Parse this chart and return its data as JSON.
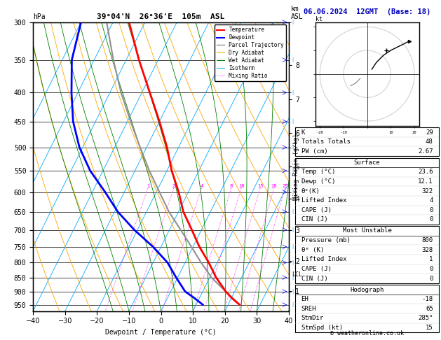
{
  "title_left": "39°04'N  26°36'E  105m  ASL",
  "title_right": "06.06.2024  12GMT  (Base: 18)",
  "xlabel": "Dewpoint / Temperature (°C)",
  "ylabel_left": "hPa",
  "copyright": "© weatheronline.co.uk",
  "pressure_ticks": [
    300,
    350,
    400,
    450,
    500,
    550,
    600,
    650,
    700,
    750,
    800,
    850,
    900,
    950
  ],
  "xlim": [
    -40,
    40
  ],
  "P_min": 300,
  "P_max": 975,
  "skew": 45,
  "temp_color": "#ff0000",
  "dewp_color": "#0000ff",
  "parcel_color": "#909090",
  "dry_adiabat_color": "#ffa500",
  "wet_adiabat_color": "#008000",
  "isotherm_color": "#00aaff",
  "mixing_ratio_color": "#ff00ff",
  "background_color": "#ffffff",
  "km_ticks": [
    1,
    2,
    3,
    4,
    5,
    6,
    7,
    8
  ],
  "km_pressures": [
    899,
    795,
    701,
    616,
    540,
    472,
    411,
    357
  ],
  "lcl_pressure": 840,
  "mixing_ratio_values": [
    1,
    2,
    4,
    8,
    10,
    15,
    20,
    25
  ],
  "legend_items": [
    {
      "label": "Temperature",
      "color": "#ff0000",
      "ls": "-",
      "lw": 1.5
    },
    {
      "label": "Dewpoint",
      "color": "#0000ff",
      "ls": "-",
      "lw": 1.5
    },
    {
      "label": "Parcel Trajectory",
      "color": "#909090",
      "ls": "-",
      "lw": 1.0
    },
    {
      "label": "Dry Adiabat",
      "color": "#ffa500",
      "ls": "-",
      "lw": 0.7
    },
    {
      "label": "Wet Adiabat",
      "color": "#008000",
      "ls": "-",
      "lw": 0.7
    },
    {
      "label": "Isotherm",
      "color": "#00aaff",
      "ls": "-",
      "lw": 0.7
    },
    {
      "label": "Mixing Ratio",
      "color": "#ff00ff",
      "ls": ":",
      "lw": 0.7
    }
  ],
  "sounding_pressure": [
    950,
    925,
    900,
    850,
    800,
    750,
    700,
    650,
    600,
    550,
    500,
    450,
    400,
    350,
    300
  ],
  "temperature": [
    23.6,
    20.2,
    17.2,
    12.0,
    7.4,
    2.0,
    -3.0,
    -8.5,
    -13.0,
    -18.5,
    -23.6,
    -30.0,
    -37.5,
    -46.0,
    -55.0
  ],
  "dewpoint": [
    12.1,
    8.5,
    4.5,
    -0.5,
    -5.5,
    -12.5,
    -21.0,
    -29.0,
    -36.0,
    -44.0,
    -51.0,
    -57.0,
    -62.0,
    -67.0,
    -70.0
  ],
  "parcel_pressure": [
    950,
    900,
    850,
    840,
    800,
    750,
    700,
    650,
    600,
    550,
    500,
    450,
    400,
    350,
    300
  ],
  "parcel_temp": [
    23.6,
    17.2,
    10.5,
    9.5,
    5.0,
    -0.5,
    -6.5,
    -13.0,
    -19.0,
    -25.5,
    -32.0,
    -39.0,
    -46.5,
    -54.0,
    -62.0
  ],
  "wind_barb_pressures": [
    950,
    900,
    850,
    800,
    750,
    700,
    650,
    600,
    550,
    500,
    450,
    400,
    350,
    300
  ],
  "wind_dirs": [
    200,
    210,
    220,
    230,
    240,
    250,
    260,
    270,
    270,
    270,
    275,
    280,
    285,
    285
  ],
  "wind_speeds": [
    5,
    7,
    10,
    12,
    14,
    16,
    18,
    18,
    20,
    22,
    22,
    24,
    25,
    28
  ],
  "hodo_u": [
    2,
    4,
    7,
    10,
    14,
    16,
    18
  ],
  "hodo_v": [
    2,
    5,
    8,
    10,
    12,
    13,
    14
  ],
  "hodo_u_gray": [
    -3,
    -5,
    -7
  ],
  "hodo_v_gray": [
    -2,
    -4,
    -5
  ],
  "stats_k": "29",
  "stats_tt": "48",
  "stats_pw": "2.67",
  "surf_temp": "23.6",
  "surf_dewp": "12.1",
  "surf_thetae": "322",
  "surf_li": "4",
  "surf_cape": "0",
  "surf_cin": "0",
  "mu_pres": "800",
  "mu_thetae": "328",
  "mu_li": "1",
  "mu_cape": "0",
  "mu_cin": "0",
  "hodo_eh": "-18",
  "hodo_sreh": "65",
  "hodo_stmdir": "285°",
  "hodo_stmspd": "15"
}
